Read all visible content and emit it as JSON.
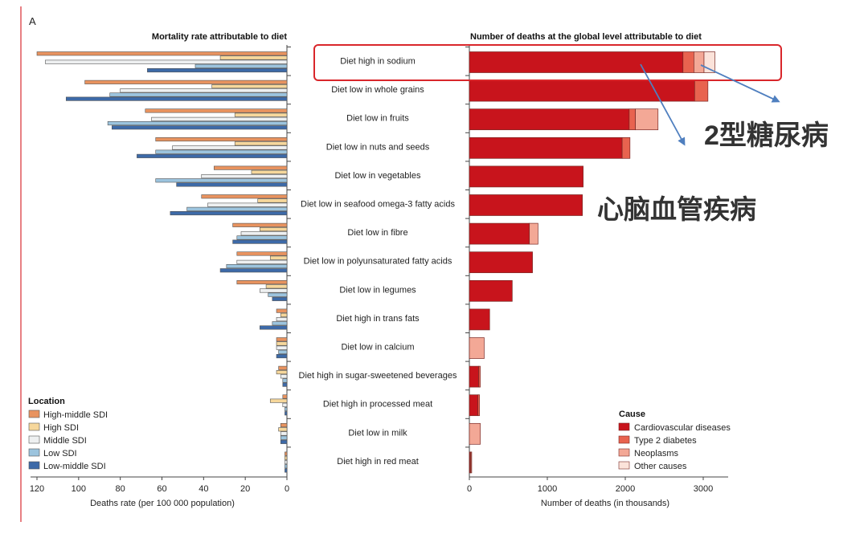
{
  "panel_label": "A",
  "chart_data": [
    {
      "type": "bar",
      "orientation": "horizontal-reversed",
      "title": "Mortality rate attributable to diet",
      "xlabel": "Deaths rate (per 100 000 population)",
      "xlim": [
        0,
        125
      ],
      "xticks": [
        "120",
        "100",
        "80",
        "60",
        "40",
        "20",
        "0"
      ],
      "xtick_values": [
        120,
        100,
        80,
        60,
        40,
        20,
        0
      ],
      "categories": [
        "Diet high in sodium",
        "Diet low in whole grains",
        "Diet low in fruits",
        "Diet low in nuts and seeds",
        "Diet low in vegetables",
        "Diet low in seafood omega-3 fatty acids",
        "Diet low in fibre",
        "Diet low in polyunsaturated fatty acids",
        "Diet low in legumes",
        "Diet high in trans fats",
        "Diet low in calcium",
        "Diet high in sugar-sweetened beverages",
        "Diet high in processed meat",
        "Diet low in milk",
        "Diet high in red meat"
      ],
      "legend_title": "Location",
      "legend_position": "bottom-left",
      "series": [
        {
          "name": "High-middle SDI",
          "color": "#e8935f",
          "values": [
            120,
            97,
            68,
            63,
            35,
            41,
            26,
            24,
            24,
            5,
            5,
            4,
            2,
            3,
            1
          ]
        },
        {
          "name": "High SDI",
          "color": "#f6d79b",
          "values": [
            32,
            36,
            25,
            25,
            17,
            14,
            13,
            8,
            10,
            3,
            5,
            5,
            8,
            4,
            1
          ]
        },
        {
          "name": "Middle SDI",
          "color": "#eef0f1",
          "values": [
            116,
            80,
            65,
            55,
            41,
            38,
            22,
            24,
            13,
            5,
            5,
            3,
            2,
            3,
            1
          ]
        },
        {
          "name": "Low SDI",
          "color": "#9cc4de",
          "values": [
            44,
            85,
            86,
            63,
            63,
            48,
            24,
            29,
            9,
            7,
            4,
            2,
            1,
            3,
            1
          ]
        },
        {
          "name": "Low-middle SDI",
          "color": "#3d6aa8",
          "values": [
            67,
            106,
            84,
            72,
            53,
            56,
            26,
            32,
            7,
            13,
            5,
            2,
            1,
            3,
            1
          ]
        }
      ]
    },
    {
      "type": "bar",
      "orientation": "horizontal",
      "stacked": true,
      "title": "Number of deaths at the global level attributable to diet",
      "xlabel": "Number of deaths (in thousands)",
      "xlim": [
        0,
        3300
      ],
      "xticks": [
        "0",
        "1000",
        "2000",
        "3000"
      ],
      "xtick_values": [
        0,
        1000,
        2000,
        3000
      ],
      "categories": [
        "Diet high in sodium",
        "Diet low in whole grains",
        "Diet low in fruits",
        "Diet low in nuts and seeds",
        "Diet low in vegetables",
        "Diet low in seafood omega-3 fatty acids",
        "Diet low in fibre",
        "Diet low in polyunsaturated fatty acids",
        "Diet low in legumes",
        "Diet high in trans fats",
        "Diet low in calcium",
        "Diet high in sugar-sweetened beverages",
        "Diet high in processed meat",
        "Diet low in milk",
        "Diet high in red meat"
      ],
      "legend_title": "Cause",
      "legend_position": "bottom-right",
      "series": [
        {
          "name": "Cardiovascular diseases",
          "color": "#c8141c",
          "values": [
            2740,
            2890,
            2050,
            1960,
            1460,
            1450,
            770,
            810,
            550,
            260,
            0,
            120,
            110,
            0,
            10
          ]
        },
        {
          "name": "Type 2 diabetes",
          "color": "#e8634f",
          "values": [
            140,
            170,
            80,
            100,
            0,
            0,
            0,
            0,
            0,
            0,
            0,
            20,
            20,
            0,
            10
          ]
        },
        {
          "name": "Neoplasms",
          "color": "#f3a896",
          "values": [
            130,
            0,
            290,
            0,
            0,
            0,
            110,
            0,
            0,
            0,
            190,
            0,
            0,
            140,
            10
          ]
        },
        {
          "name": "Other causes",
          "color": "#fbe3da",
          "values": [
            140,
            0,
            0,
            0,
            0,
            0,
            0,
            0,
            0,
            0,
            0,
            0,
            0,
            0,
            0
          ]
        }
      ]
    }
  ],
  "annotations": {
    "type2_diabetes": "2型糖尿病",
    "cardiovascular": "心脑血管疾病",
    "highlight_color": "#d9262b",
    "arrow_color": "#4f7fbf"
  }
}
